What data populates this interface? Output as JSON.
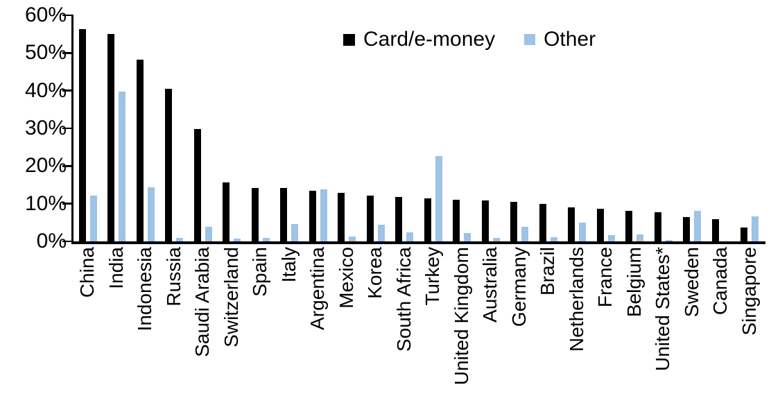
{
  "chart_data": {
    "type": "bar",
    "title": "",
    "xlabel": "",
    "ylabel": "",
    "ylim": [
      0,
      60
    ],
    "y_ticks": [
      "0%",
      "10%",
      "20%",
      "30%",
      "40%",
      "50%",
      "60%"
    ],
    "grid": "off",
    "legend_position": "top-center",
    "categories": [
      "China",
      "India",
      "Indonesia",
      "Russia",
      "Saudi Arabia",
      "Switzerland",
      "Spain",
      "Italy",
      "Argentina",
      "Mexico",
      "Korea",
      "South Africa",
      "Turkey",
      "United Kingdom",
      "Australia",
      "Germany",
      "Brazil",
      "Netherlands",
      "France",
      "Belgium",
      "United States*",
      "Sweden",
      "Canada",
      "Singapore"
    ],
    "series": [
      {
        "name": "Card/e-money",
        "color": "#000000",
        "values": [
          56.3,
          55.1,
          48.3,
          40.5,
          29.8,
          15.6,
          14.2,
          14.1,
          13.4,
          12.9,
          12.2,
          11.7,
          11.5,
          11.1,
          10.8,
          10.5,
          9.9,
          9.1,
          8.6,
          8.1,
          7.8,
          6.4,
          5.9,
          3.7
        ]
      },
      {
        "name": "Other",
        "color": "#9DC3E6",
        "values": [
          12.2,
          39.8,
          14.4,
          1.0,
          3.9,
          0.7,
          0.9,
          4.6,
          13.9,
          1.3,
          4.5,
          2.4,
          22.6,
          2.3,
          0.9,
          3.9,
          1.2,
          4.9,
          1.6,
          1.9,
          0.3,
          8.1,
          0.0,
          6.6
        ]
      }
    ]
  }
}
